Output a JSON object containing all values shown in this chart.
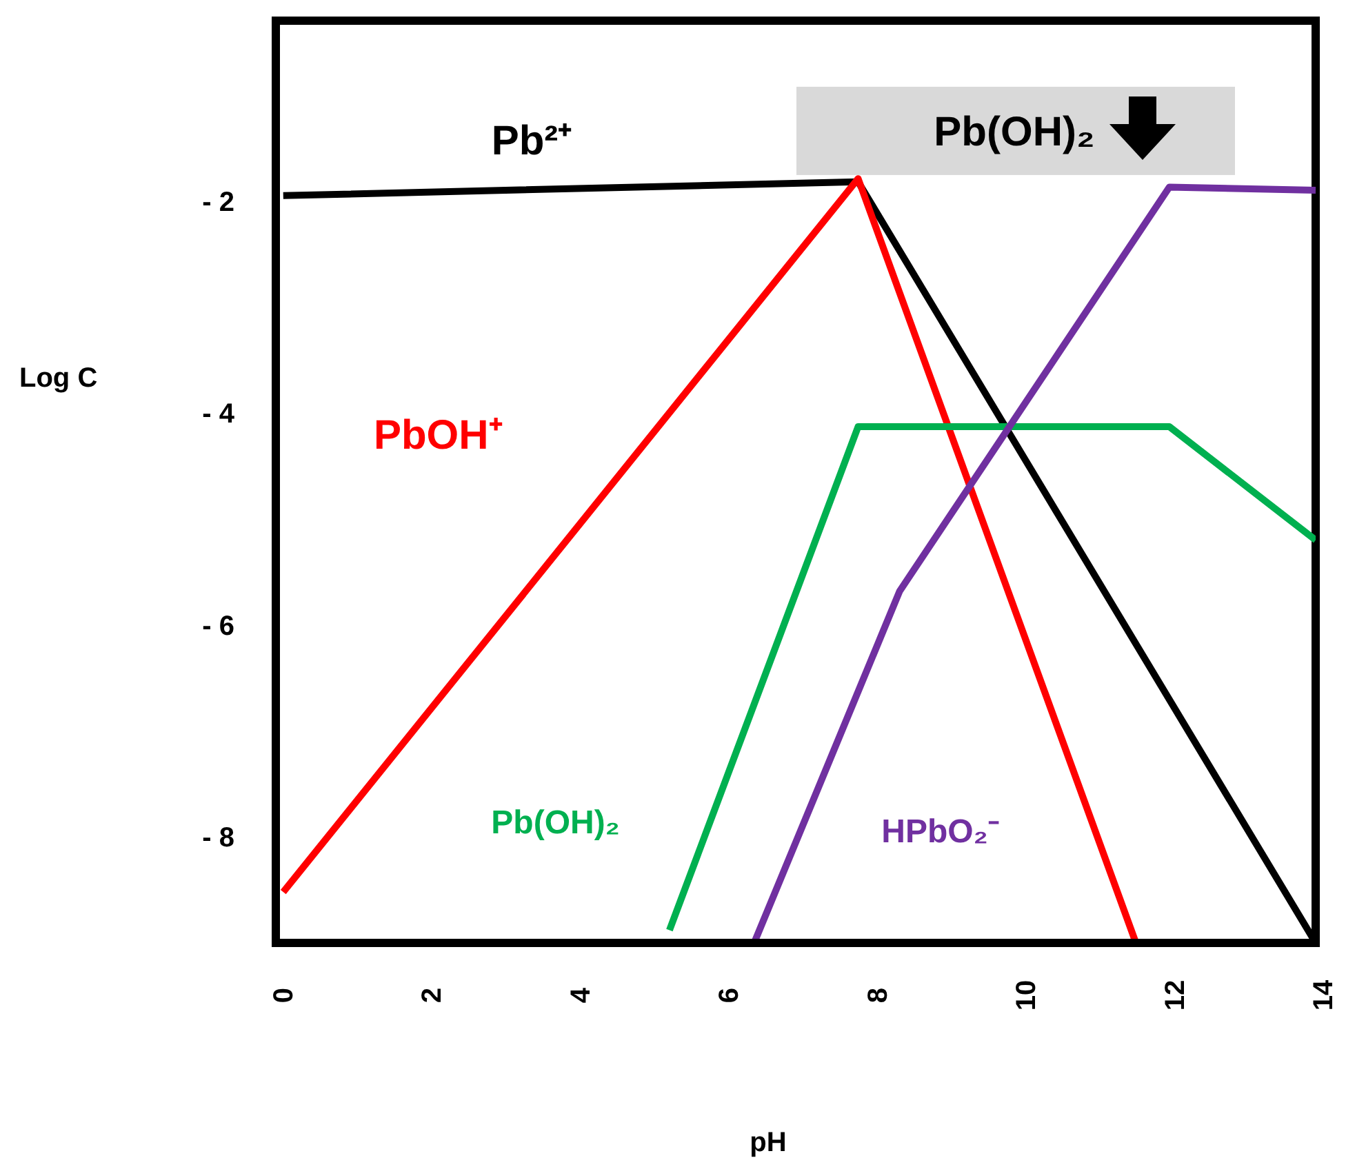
{
  "chart_data": {
    "type": "line",
    "xlabel": "pH",
    "ylabel": "Log C",
    "xlim": [
      0,
      14
    ],
    "xticks": [
      0,
      2,
      4,
      6,
      8,
      10,
      12,
      14
    ],
    "ylim": [
      -9,
      -0.3
    ],
    "yticks": [
      {
        "value": -2,
        "label": "- 2"
      },
      {
        "value": -4,
        "label": "- 4"
      },
      {
        "value": -6,
        "label": "- 6"
      },
      {
        "value": -8,
        "label": "-  8"
      }
    ],
    "series": [
      {
        "name": "Pb²⁺",
        "color": "#000000",
        "x": [
          0.1,
          7.84,
          14
        ],
        "values": [
          -1.95,
          -1.82,
          -9.0
        ]
      },
      {
        "name": "PbOH⁺",
        "color": "#ff0000",
        "x": [
          0.1,
          7.84,
          11.58
        ],
        "values": [
          -8.52,
          -1.79,
          -9.0
        ]
      },
      {
        "name": "Pb(OH)₂",
        "color": "#00b050",
        "x": [
          5.3,
          7.84,
          12.03,
          14
        ],
        "values": [
          -8.88,
          -4.13,
          -4.13,
          -5.2
        ]
      },
      {
        "name": "HPbO₂⁻",
        "color": "#7030a0",
        "x": [
          6.44,
          8.4,
          12.03,
          14
        ],
        "values": [
          -9.0,
          -5.68,
          -1.87,
          -1.9
        ]
      }
    ],
    "annotations": [
      "Pb(OH)₂"
    ],
    "grid": false,
    "legend": false,
    "marker": "none",
    "line_style": "solid"
  }
}
